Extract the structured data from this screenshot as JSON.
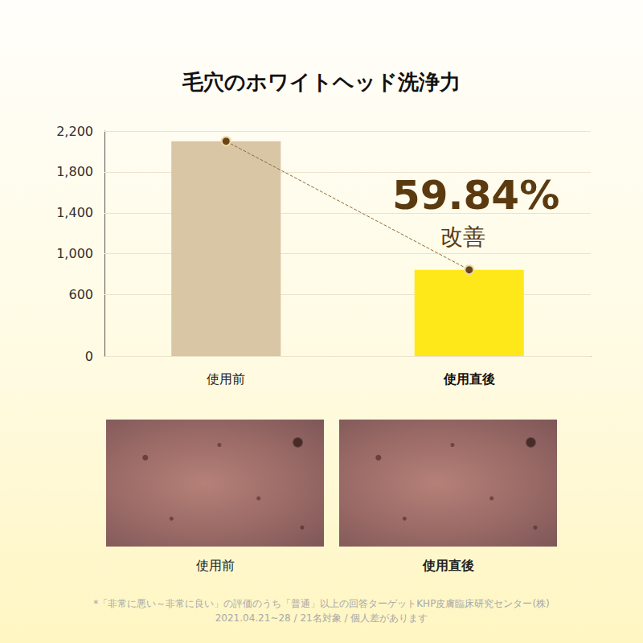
{
  "chart_data": {
    "type": "bar",
    "title": "毛穴のホワイトヘッド洗浄力",
    "categories": [
      "使用前",
      "使用直後"
    ],
    "values": [
      2100,
      843
    ],
    "colors": [
      "#d9c6a5",
      "#ffe81a"
    ],
    "ylim": [
      0,
      2200
    ],
    "yticks": [
      0,
      600,
      {
        "value": 1000,
        "label": "1,000"
      },
      {
        "value": 1400,
        "label": "1,400"
      },
      {
        "value": 1800,
        "label": "1,800"
      },
      {
        "value": 2200,
        "label": "2,200"
      }
    ],
    "grid": true,
    "annotations": [
      "59.84%",
      "改善"
    ]
  },
  "photos": {
    "captions": [
      "使用前",
      "使用直後"
    ]
  },
  "footnote": [
    "*「非常に悪い～非常に良い」の評価のうち「普通」以上の回答ターゲットKHP皮膚臨床研究センター(株)",
    "2021.04.21~28 / 21名対象 / 個人差があります"
  ]
}
